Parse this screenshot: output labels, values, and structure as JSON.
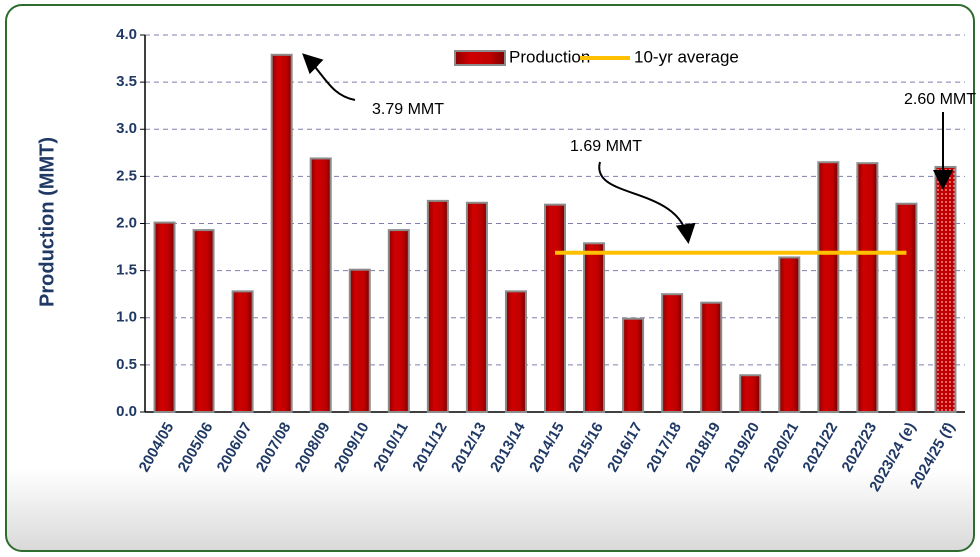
{
  "chart_data": {
    "type": "bar",
    "y_label": "Production (MMT)",
    "categories": [
      "2004/05",
      "2005/06",
      "2006/07",
      "2007/08",
      "2008/09",
      "2009/10",
      "2010/11",
      "2011/12",
      "2012/13",
      "2013/14",
      "2014/15",
      "2015/16",
      "2016/17",
      "2017/18",
      "2018/19",
      "2019/20",
      "2020/21",
      "2021/22",
      "2022/23",
      "2023/24 (e)",
      "2024/25 (f)"
    ],
    "series": [
      {
        "name": "Production",
        "type": "bar",
        "color": "#c00000",
        "values": [
          2.01,
          1.93,
          1.28,
          3.79,
          2.69,
          1.51,
          1.93,
          2.24,
          2.22,
          1.28,
          2.2,
          1.79,
          0.99,
          1.25,
          1.16,
          0.39,
          1.64,
          2.65,
          2.64,
          2.21,
          2.6
        ]
      },
      {
        "name": "10-yr average",
        "type": "line",
        "color": "#ffc000",
        "values": [
          null,
          null,
          null,
          null,
          null,
          null,
          null,
          null,
          null,
          null,
          1.69,
          1.69,
          1.69,
          1.69,
          1.69,
          1.69,
          1.69,
          1.69,
          1.69,
          1.69,
          null
        ]
      }
    ],
    "annotations": [
      "3.79 MMT",
      "1.69 MMT",
      "2.60 MMT"
    ],
    "ylim": [
      0,
      4
    ],
    "yticks": [
      {
        "value": 0,
        "label": "0.0"
      },
      0.5,
      {
        "value": 1,
        "label": "1.0"
      },
      1.5,
      {
        "value": 2,
        "label": "2.0"
      },
      2.5,
      {
        "value": 3,
        "label": "3.0"
      },
      3.5,
      {
        "value": 4,
        "label": "4.0"
      }
    ],
    "grid": true,
    "legend": "top"
  }
}
